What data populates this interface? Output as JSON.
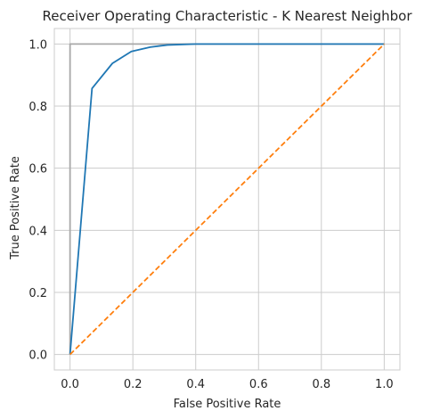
{
  "chart_data": {
    "type": "line",
    "title": "Receiver Operating Characteristic - K Nearest Neighbor",
    "xlabel": "False Positive Rate",
    "ylabel": "True Positive Rate",
    "xlim": [
      -0.05,
      1.05
    ],
    "ylim": [
      -0.05,
      1.05
    ],
    "x_ticks": [
      "0.0",
      "0.2",
      "0.4",
      "0.6",
      "0.8",
      "1.0"
    ],
    "y_ticks": [
      "0.0",
      "0.2",
      "0.4",
      "0.6",
      "0.8",
      "1.0"
    ],
    "grid": true,
    "series": [
      {
        "color": "#1f77b4",
        "style": "solid",
        "x": [
          0.0,
          0.07,
          0.135,
          0.195,
          0.255,
          0.31,
          0.4,
          0.6,
          1.0
        ],
        "y": [
          0.0,
          0.857,
          0.938,
          0.976,
          0.99,
          0.997,
          1.0,
          1.0,
          1.0
        ]
      },
      {
        "color": "#ff7f0e",
        "style": "dashed",
        "x": [
          0.0,
          1.0
        ],
        "y": [
          0.0,
          1.0
        ]
      },
      {
        "color": "#a9a9a9",
        "style": "solid",
        "x": [
          0.0,
          0.0,
          1.0
        ],
        "y": [
          0.0,
          1.0,
          1.0
        ]
      }
    ]
  }
}
